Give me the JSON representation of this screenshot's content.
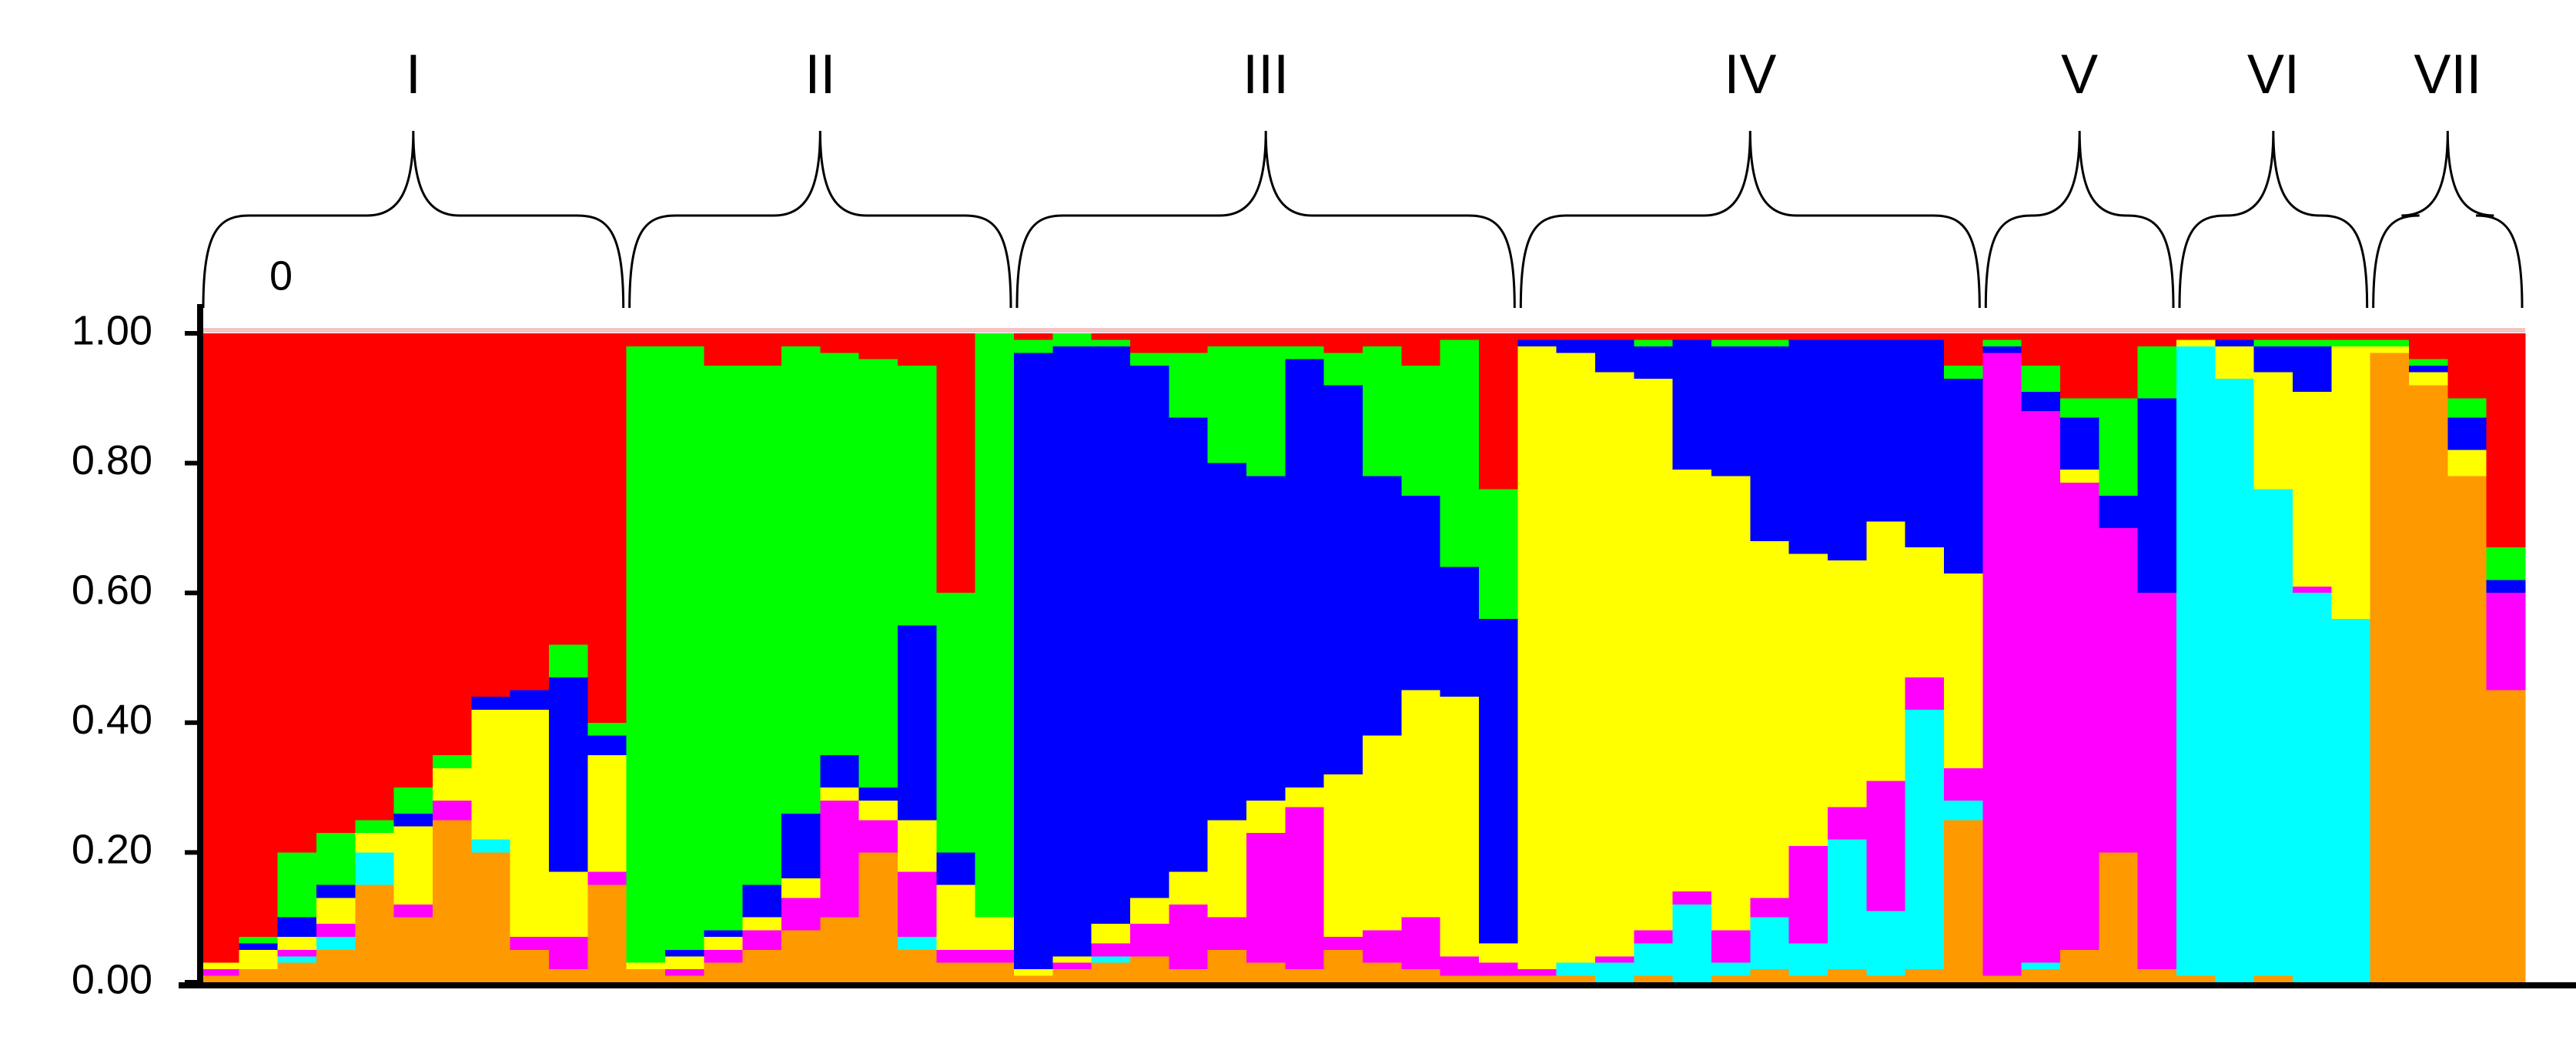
{
  "chart_data": {
    "type": "stacked_bar",
    "ylim": [
      0,
      1
    ],
    "yticks": [
      {
        "value": 0,
        "label": "0.00"
      },
      {
        "value": 0.2,
        "label": "0.20"
      },
      {
        "value": 0.4,
        "label": "0.40"
      },
      {
        "value": 0.6,
        "label": "0.60"
      },
      {
        "value": 0.8,
        "label": "0.80"
      },
      {
        "value": 1,
        "label": "1.00"
      }
    ],
    "annotations": [
      {
        "text": "0"
      }
    ],
    "groups": [
      {
        "label": "I",
        "size": 11
      },
      {
        "label": "II",
        "size": 10
      },
      {
        "label": "III",
        "size": 13
      },
      {
        "label": "IV",
        "size": 12
      },
      {
        "label": "V",
        "size": 5
      },
      {
        "label": "VI",
        "size": 5
      },
      {
        "label": "VII",
        "size": 4
      }
    ],
    "series": [
      {
        "color": "#ff9900",
        "values": [
          0.01,
          0.02,
          0.03,
          0.05,
          0.15,
          0.1,
          0.25,
          0.2,
          0.05,
          0.02,
          0.15,
          0.02,
          0.01,
          0.03,
          0.05,
          0.08,
          0.1,
          0.2,
          0.05,
          0.03,
          0.03,
          0.01,
          0.02,
          0.03,
          0.04,
          0.02,
          0.05,
          0.03,
          0.02,
          0.05,
          0.03,
          0.02,
          0.01,
          0.01,
          0.01,
          0.01,
          0,
          0.01,
          0,
          0.01,
          0.02,
          0.01,
          0.02,
          0.01,
          0.02,
          0.25,
          0.01,
          0.02,
          0.05,
          0.2,
          0.02,
          0.01,
          0,
          0.01,
          0,
          0,
          0.97,
          0.92,
          0.78,
          0.45
        ]
      },
      {
        "color": "#00ffff",
        "values": [
          0,
          0,
          0.01,
          0.02,
          0.05,
          0,
          0,
          0.02,
          0,
          0,
          0,
          0,
          0,
          0,
          0,
          0,
          0,
          0,
          0.02,
          0,
          0,
          0,
          0,
          0.01,
          0,
          0,
          0,
          0,
          0,
          0,
          0,
          0,
          0,
          0,
          0,
          0.02,
          0.03,
          0.05,
          0.12,
          0.02,
          0.08,
          0.05,
          0.2,
          0.1,
          0.4,
          0.03,
          0,
          0.01,
          0,
          0,
          0,
          0.97,
          0.93,
          0.75,
          0.6,
          0.56,
          0,
          0,
          0,
          0
        ]
      },
      {
        "color": "#ff00ff",
        "values": [
          0.01,
          0,
          0.01,
          0.02,
          0,
          0.02,
          0.03,
          0,
          0.02,
          0.05,
          0.02,
          0,
          0.01,
          0.02,
          0.03,
          0.05,
          0.18,
          0.05,
          0.1,
          0.02,
          0.02,
          0,
          0.01,
          0.02,
          0.05,
          0.1,
          0.05,
          0.2,
          0.25,
          0.02,
          0.05,
          0.08,
          0.03,
          0.02,
          0.01,
          0,
          0.01,
          0.02,
          0.02,
          0.05,
          0.03,
          0.15,
          0.05,
          0.2,
          0.05,
          0.05,
          0.96,
          0.85,
          0.72,
          0.5,
          0.58,
          0,
          0,
          0,
          0.01,
          0,
          0,
          0,
          0,
          0.15
        ]
      },
      {
        "color": "#ffff00",
        "values": [
          0.01,
          0.03,
          0.02,
          0.04,
          0.03,
          0.12,
          0.05,
          0.2,
          0.35,
          0.1,
          0.18,
          0.01,
          0.02,
          0.02,
          0.02,
          0.03,
          0.02,
          0.03,
          0.08,
          0.1,
          0.05,
          0.01,
          0.01,
          0.03,
          0.04,
          0.05,
          0.15,
          0.05,
          0.03,
          0.25,
          0.3,
          0.35,
          0.4,
          0.03,
          0.96,
          0.94,
          0.9,
          0.85,
          0.65,
          0.7,
          0.55,
          0.45,
          0.38,
          0.4,
          0.2,
          0.3,
          0,
          0,
          0.02,
          0,
          0,
          0.01,
          0.05,
          0.18,
          0.3,
          0.42,
          0.01,
          0.02,
          0.04,
          0
        ]
      },
      {
        "color": "#0000ff",
        "values": [
          0,
          0.01,
          0.03,
          0.02,
          0,
          0.02,
          0,
          0.02,
          0.03,
          0.3,
          0.03,
          0,
          0.01,
          0.01,
          0.05,
          0.1,
          0.05,
          0.02,
          0.3,
          0.05,
          0,
          0.95,
          0.94,
          0.89,
          0.82,
          0.7,
          0.55,
          0.5,
          0.66,
          0.6,
          0.4,
          0.3,
          0.2,
          0.5,
          0.01,
          0.02,
          0.05,
          0.05,
          0.2,
          0.2,
          0.3,
          0.33,
          0.34,
          0.28,
          0.32,
          0.3,
          0.01,
          0.03,
          0.08,
          0.05,
          0.3,
          0,
          0.01,
          0.04,
          0.07,
          0,
          0,
          0.01,
          0.05,
          0.02
        ]
      },
      {
        "color": "#00ff00",
        "values": [
          0,
          0.01,
          0.1,
          0.08,
          0.02,
          0.04,
          0.02,
          0,
          0,
          0.05,
          0.02,
          0.95,
          0.93,
          0.87,
          0.8,
          0.72,
          0.62,
          0.66,
          0.4,
          0.4,
          0.9,
          0.02,
          0.02,
          0.01,
          0.02,
          0.1,
          0.18,
          0.2,
          0.02,
          0.05,
          0.2,
          0.2,
          0.35,
          0.2,
          0,
          0,
          0,
          0.01,
          0,
          0.01,
          0.01,
          0,
          0,
          0,
          0,
          0.02,
          0.01,
          0.04,
          0.03,
          0.15,
          0.08,
          0,
          0,
          0.01,
          0.01,
          0.01,
          0.01,
          0.01,
          0.03,
          0.05
        ]
      },
      {
        "color": "#ff0000",
        "values": [
          0.97,
          0.93,
          0.8,
          0.77,
          0.75,
          0.7,
          0.65,
          0.56,
          0.55,
          0.48,
          0.6,
          0.02,
          0.02,
          0.05,
          0.05,
          0.02,
          0.03,
          0.04,
          0.05,
          0.4,
          0,
          0.01,
          0,
          0.01,
          0.03,
          0.03,
          0.02,
          0.02,
          0.02,
          0.03,
          0.02,
          0.05,
          0.01,
          0.24,
          0.01,
          0.01,
          0.01,
          0.01,
          0.01,
          0.01,
          0.01,
          0.01,
          0.01,
          0.01,
          0.01,
          0.05,
          0.01,
          0.05,
          0.1,
          0.1,
          0.02,
          0.01,
          0.01,
          0.01,
          0.01,
          0.01,
          0.01,
          0.04,
          0.1,
          0.33
        ]
      }
    ]
  }
}
